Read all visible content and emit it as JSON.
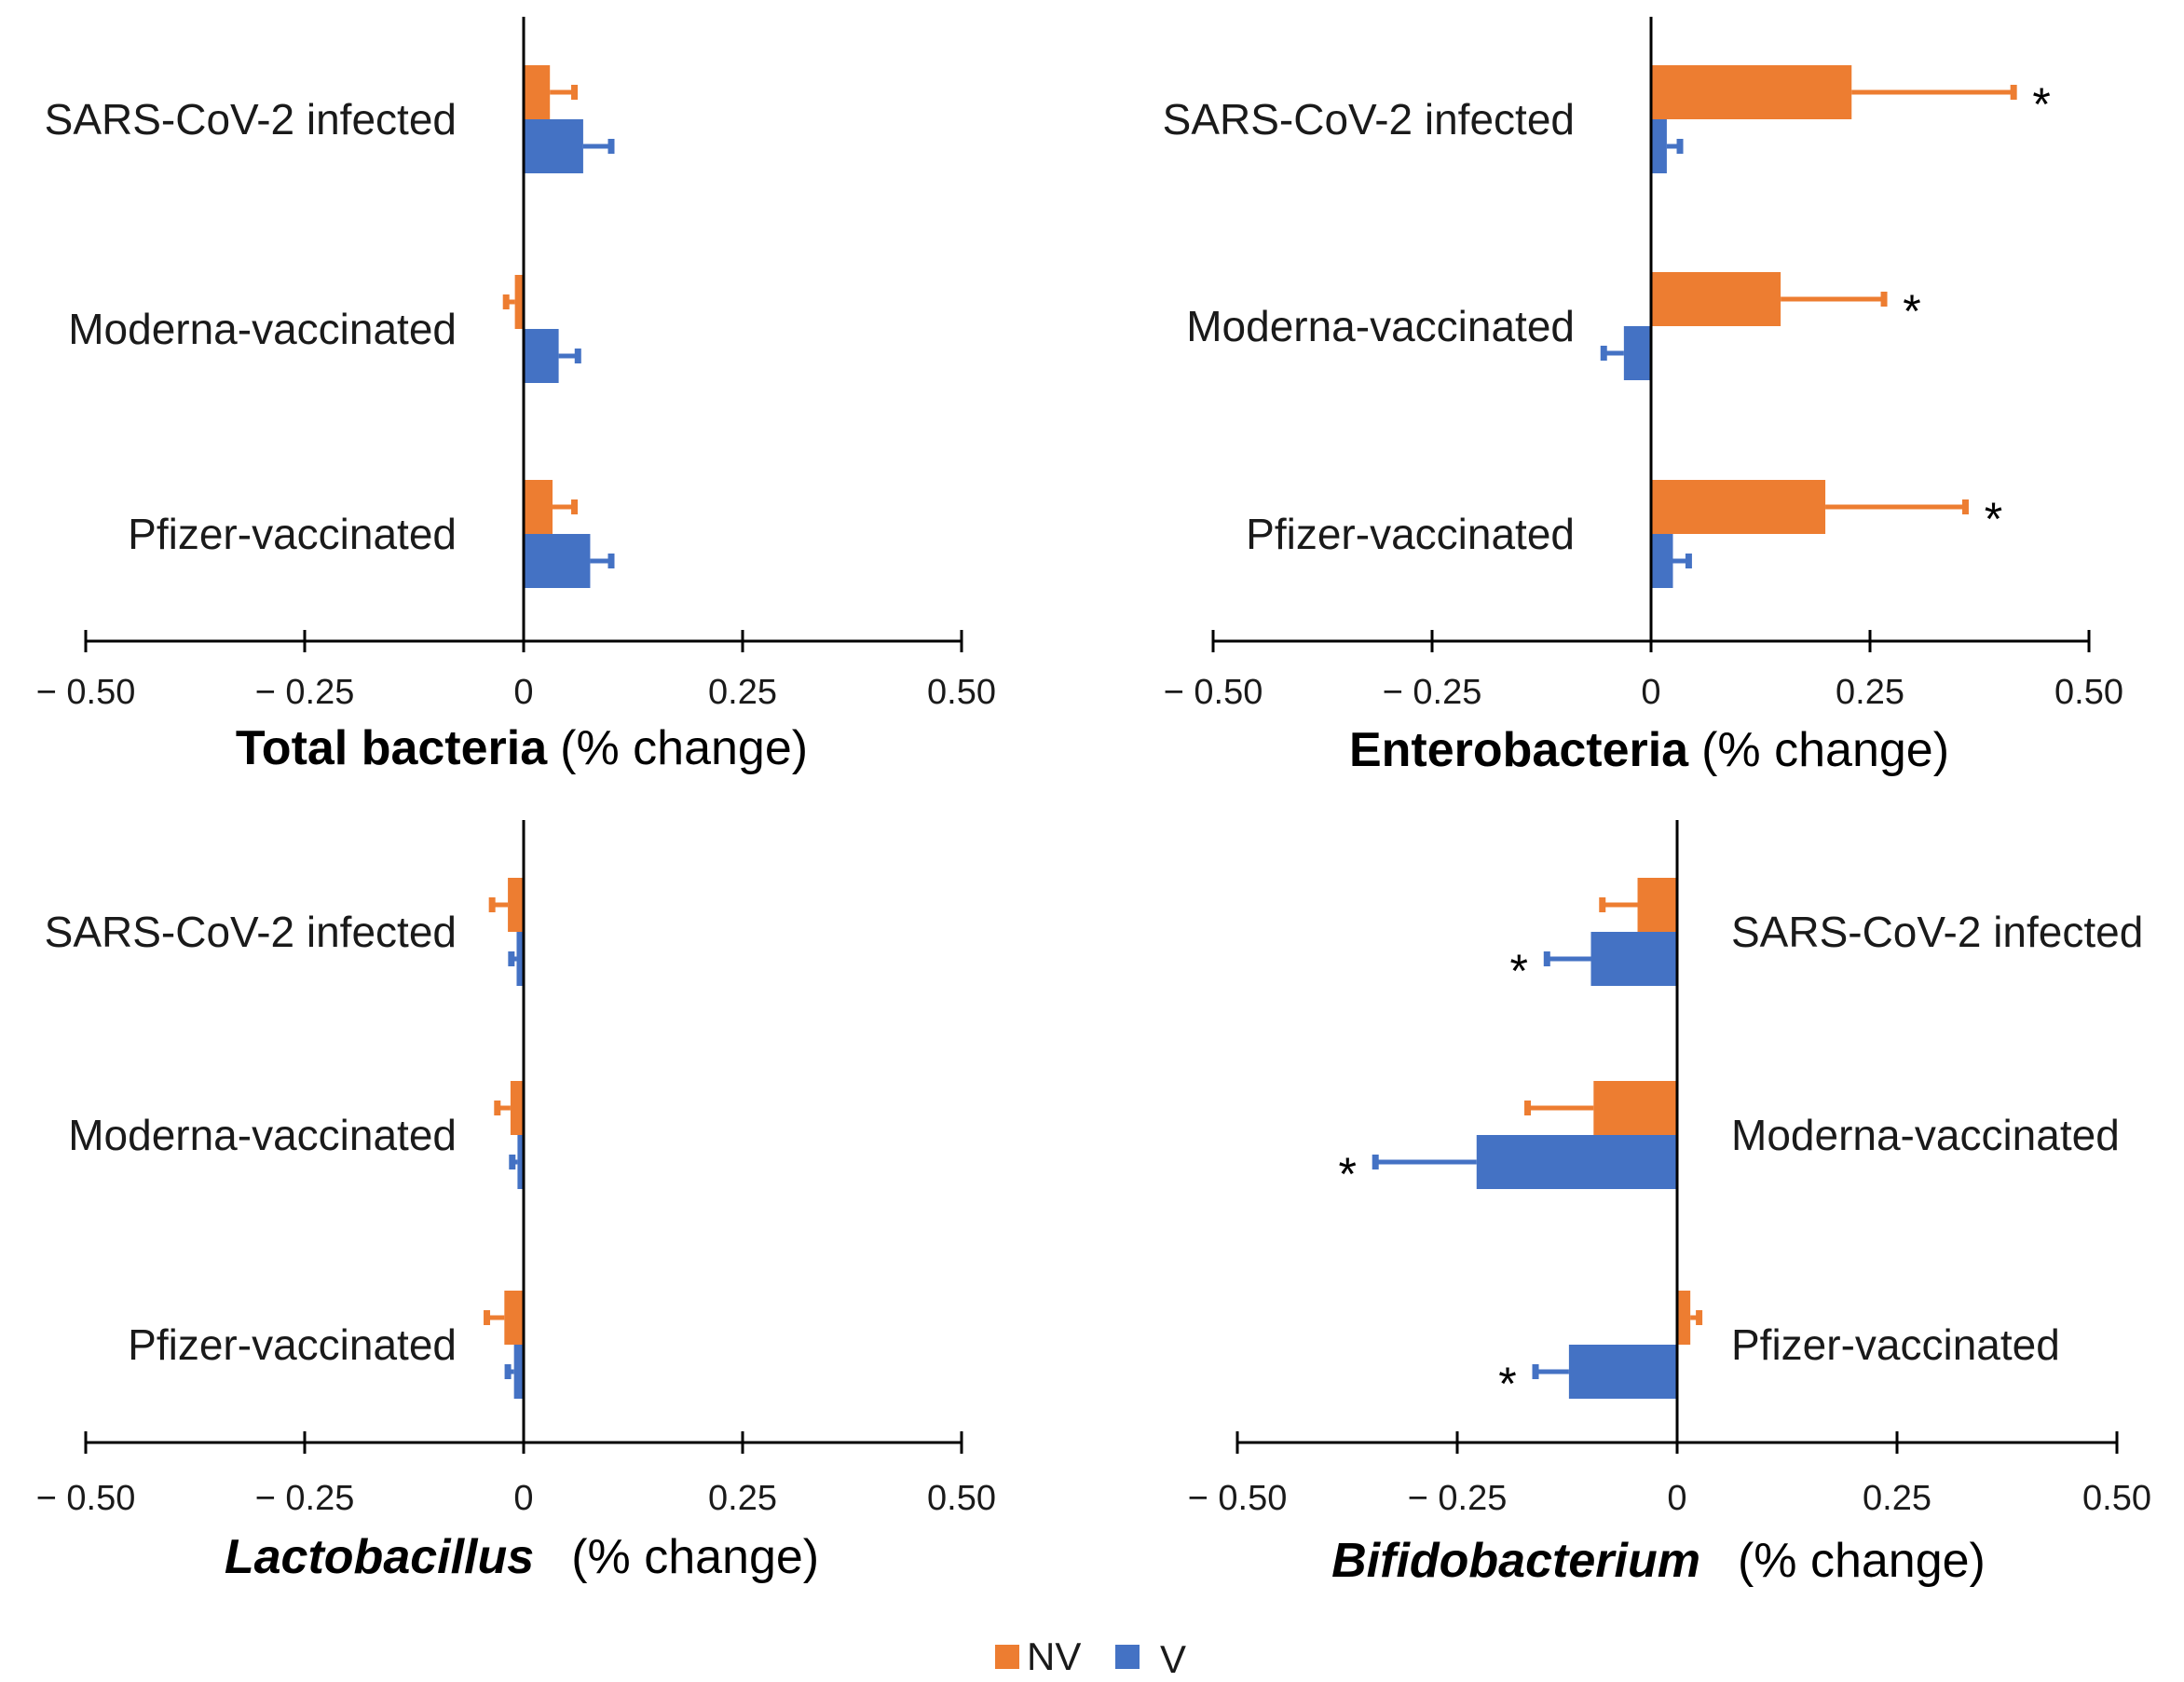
{
  "colors": {
    "NV": "#ED7D31",
    "V": "#4472C4",
    "axis": "#000000"
  },
  "legend": [
    {
      "key": "NV",
      "label": "NV"
    },
    {
      "key": "V",
      "label": "V"
    }
  ],
  "chart_data": [
    {
      "type": "bar",
      "orientation": "horizontal",
      "title_bold": "Total bacteria",
      "title_rest": "(% change)",
      "title_italic": false,
      "categories": [
        "SARS-CoV-2 infected",
        "Moderna-vaccinated",
        "Pfizer-vaccinated"
      ],
      "series": [
        {
          "name": "NV",
          "values": [
            0.03,
            -0.01,
            0.033
          ],
          "errors": [
            0.028,
            0.01,
            0.025
          ],
          "significant": [
            false,
            false,
            false
          ]
        },
        {
          "name": "V",
          "values": [
            0.068,
            0.04,
            0.076
          ],
          "errors": [
            0.032,
            0.022,
            0.024
          ],
          "significant": [
            false,
            false,
            false
          ]
        }
      ],
      "xlim": [
        -0.5,
        0.5
      ],
      "ticks": [
        -0.5,
        -0.25,
        0,
        0.25,
        0.5
      ],
      "tick_labels": [
        "− 0.50",
        "− 0.25",
        "0",
        "0.25",
        "0.50"
      ],
      "label_side": "left"
    },
    {
      "type": "bar",
      "orientation": "horizontal",
      "title_bold": "Enterobacteria",
      "title_rest": "(% change)",
      "title_italic": false,
      "categories": [
        "SARS-CoV-2 infected",
        "Moderna-vaccinated",
        "Pfizer-vaccinated"
      ],
      "series": [
        {
          "name": "NV",
          "values": [
            0.229,
            0.148,
            0.199
          ],
          "errors": [
            0.185,
            0.118,
            0.16
          ],
          "significant": [
            true,
            true,
            true
          ]
        },
        {
          "name": "V",
          "values": [
            0.018,
            -0.031,
            0.025
          ],
          "errors": [
            0.015,
            0.023,
            0.018
          ],
          "significant": [
            false,
            false,
            false
          ]
        }
      ],
      "xlim": [
        -0.5,
        0.5
      ],
      "ticks": [
        -0.5,
        -0.25,
        0,
        0.25,
        0.5
      ],
      "tick_labels": [
        "− 0.50",
        "− 0.25",
        "0",
        "0.25",
        "0.50"
      ],
      "label_side": "left"
    },
    {
      "type": "bar",
      "orientation": "horizontal",
      "title_bold": "Lactobacillus",
      "title_rest": "(% change)",
      "title_italic": true,
      "categories": [
        "SARS-CoV-2 infected",
        "Moderna-vaccinated",
        "Pfizer-vaccinated"
      ],
      "series": [
        {
          "name": "NV",
          "values": [
            -0.018,
            -0.015,
            -0.022
          ],
          "errors": [
            0.018,
            0.015,
            0.02
          ],
          "significant": [
            false,
            false,
            false
          ]
        },
        {
          "name": "V",
          "values": [
            -0.008,
            -0.007,
            -0.011
          ],
          "errors": [
            0.006,
            0.006,
            0.007
          ],
          "significant": [
            false,
            false,
            false
          ]
        }
      ],
      "xlim": [
        -0.5,
        0.5
      ],
      "ticks": [
        -0.5,
        -0.25,
        0,
        0.25,
        0.5
      ],
      "tick_labels": [
        "− 0.50",
        "− 0.25",
        "0",
        "0.25",
        "0.50"
      ],
      "label_side": "left"
    },
    {
      "type": "bar",
      "orientation": "horizontal",
      "title_bold": "Bifidobacterium",
      "title_rest": "(% change)",
      "title_italic": true,
      "categories": [
        "SARS-CoV-2 infected",
        "Moderna-vaccinated",
        "Pfizer-vaccinated"
      ],
      "series": [
        {
          "name": "NV",
          "values": [
            -0.045,
            -0.095,
            0.015
          ],
          "errors": [
            0.04,
            0.075,
            0.01
          ],
          "significant": [
            false,
            false,
            false
          ]
        },
        {
          "name": "V",
          "values": [
            -0.098,
            -0.228,
            -0.123
          ],
          "errors": [
            0.05,
            0.115,
            0.038
          ],
          "significant": [
            true,
            true,
            true
          ]
        }
      ],
      "xlim": [
        -0.5,
        0.5
      ],
      "ticks": [
        -0.5,
        -0.25,
        0,
        0.25,
        0.5
      ],
      "tick_labels": [
        "− 0.50",
        "− 0.25",
        "0",
        "0.25",
        "0.50"
      ],
      "label_side": "right"
    }
  ]
}
